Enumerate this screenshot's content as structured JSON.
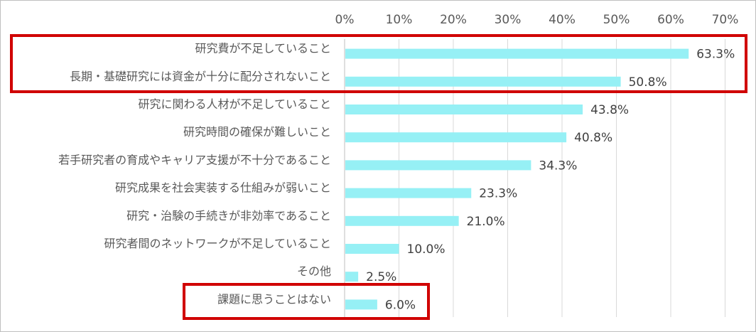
{
  "chart_data": {
    "type": "bar",
    "orientation": "horizontal",
    "categories": [
      "研究費が不足していること",
      "長期・基礎研究には資金が十分に配分されないこと",
      "研究に関わる人材が不足していること",
      "研究時間の確保が難しいこと",
      "若手研究者の育成やキャリア支援が不十分であること",
      "研究成果を社会実装する仕組みが弱いこと",
      "研究・治験の手続きが非効率であること",
      "研究者間のネットワークが不足していること",
      "その他",
      "課題に思うことはない"
    ],
    "values": [
      63.3,
      50.8,
      43.8,
      40.8,
      34.3,
      23.3,
      21.0,
      10.0,
      2.5,
      6.0
    ],
    "data_labels": [
      "63.3%",
      "50.8%",
      "43.8%",
      "40.8%",
      "34.3%",
      "23.3%",
      "21.0%",
      "10.0%",
      "2.5%",
      "6.0%"
    ],
    "x_ticks": [
      "0%",
      "10%",
      "20%",
      "30%",
      "40%",
      "50%",
      "60%",
      "70%"
    ],
    "xlim": [
      0,
      70
    ],
    "x_axis_position": "top",
    "grid": true,
    "bar_color": "#96F0F5",
    "highlight_color": "#D00000",
    "highlighted_categories": [
      [
        0,
        1
      ],
      [
        9
      ]
    ]
  }
}
